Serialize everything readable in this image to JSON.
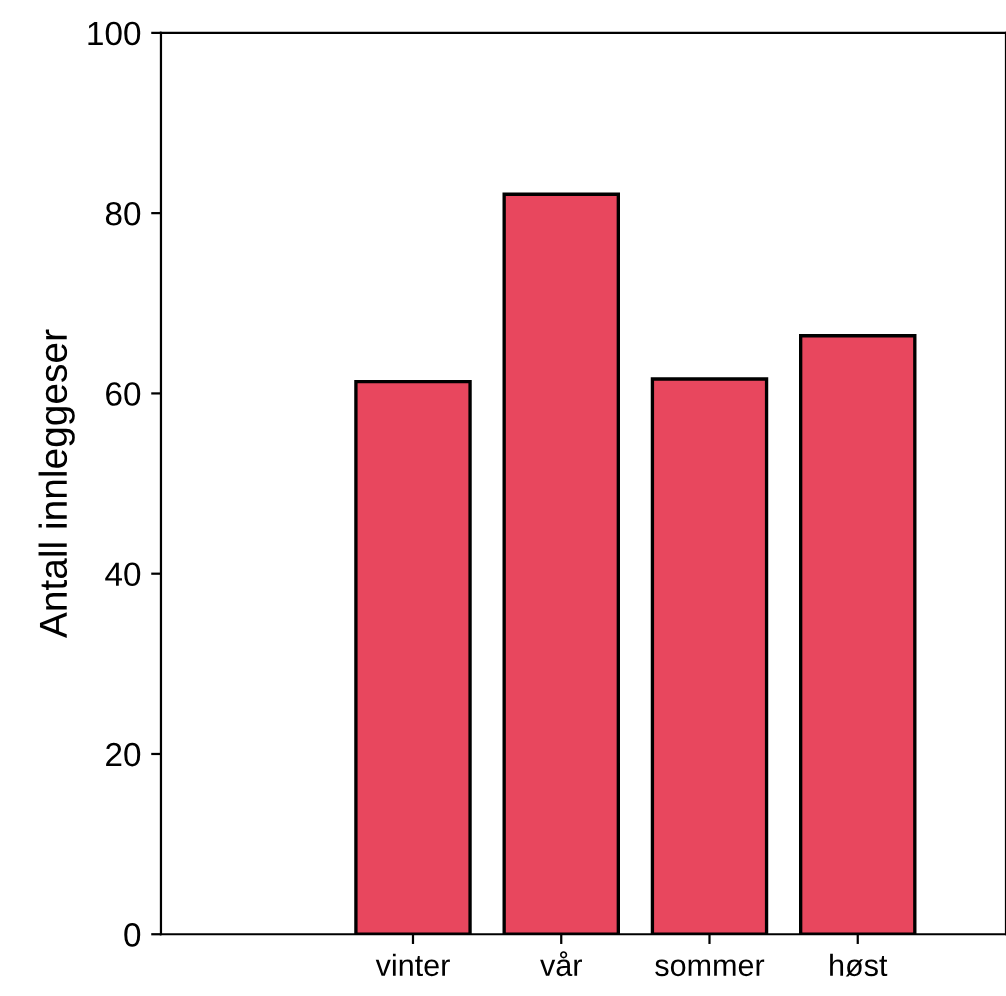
{
  "chart_data": {
    "type": "bar",
    "ylabel": "Antall innleggeser",
    "categories": [
      "vinter",
      "vår",
      "sommer",
      "høst"
    ],
    "values": [
      61.3,
      82.1,
      61.6,
      66.4
    ],
    "color": "#e8475e",
    "ylim": [
      0,
      100
    ],
    "yticks": [
      0,
      20,
      40,
      60,
      80,
      100
    ],
    "grid": false
  }
}
